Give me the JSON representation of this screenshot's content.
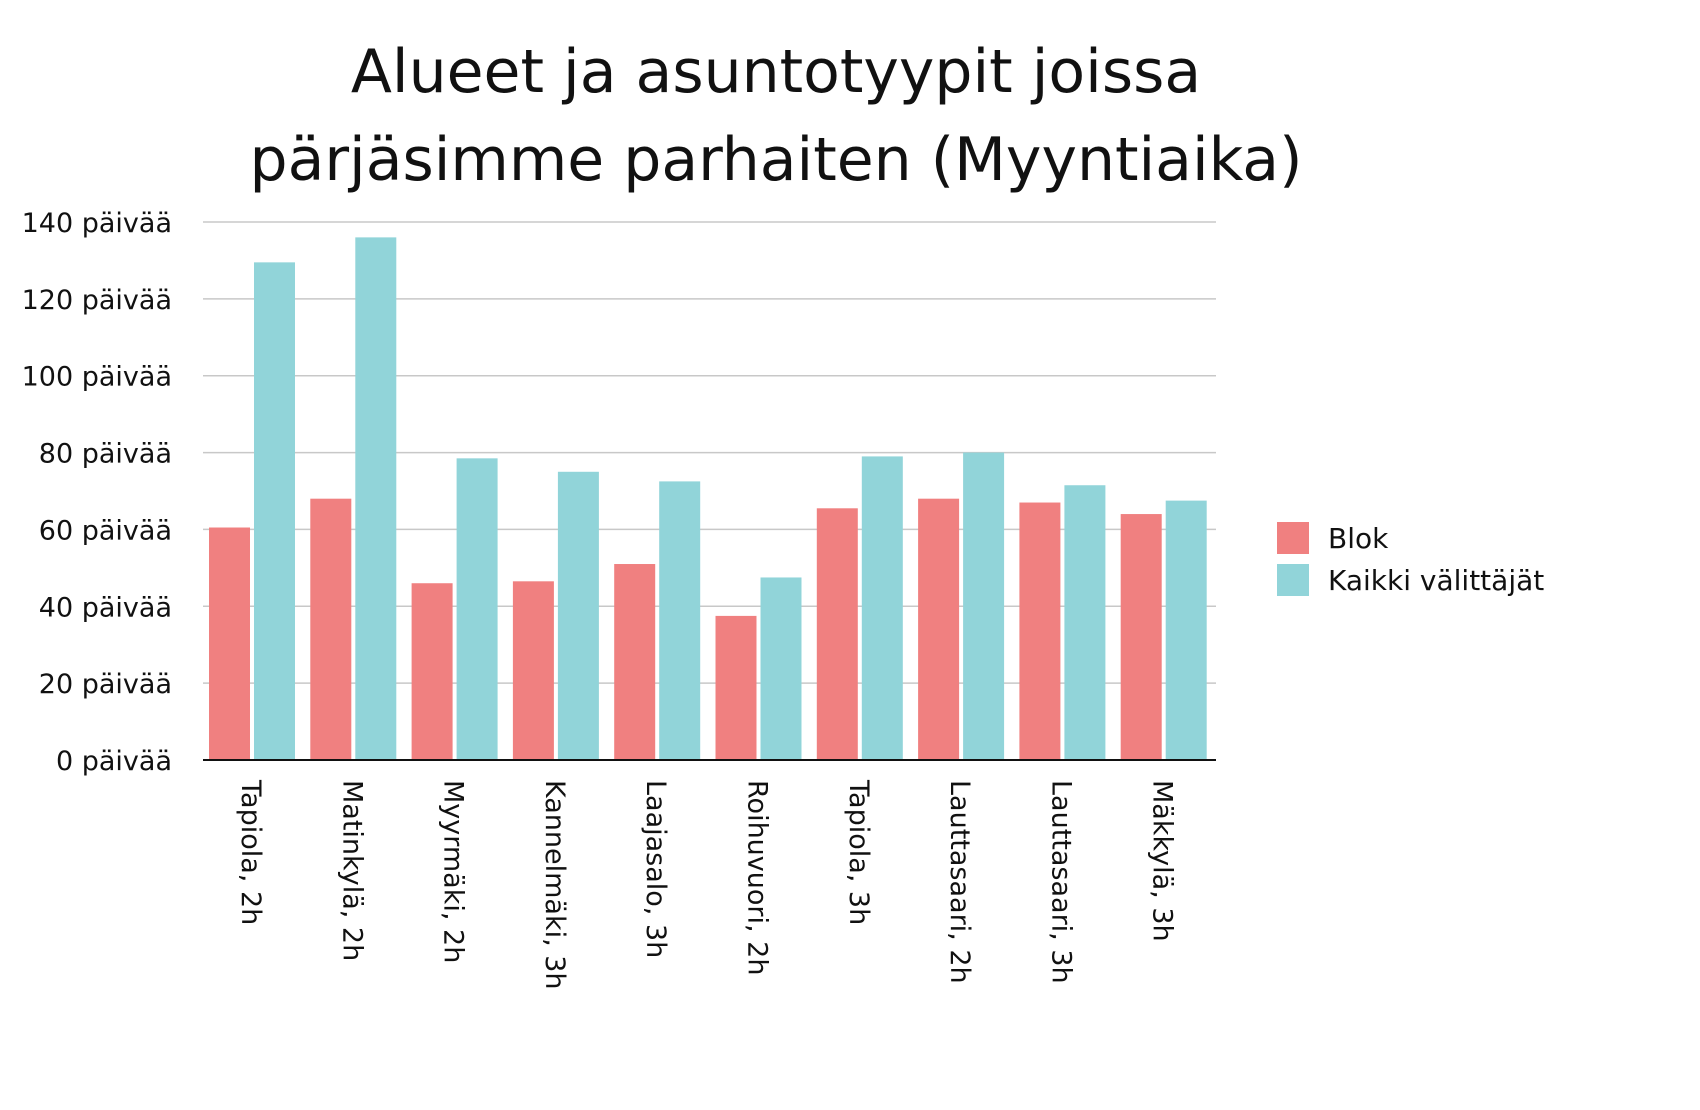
{
  "chart_data": {
    "type": "bar",
    "title": [
      "Alueet ja asuntotyypit joissa",
      "pärjäsimme parhaiten (Myyntiaika)"
    ],
    "categories": [
      "Tapiola, 2h",
      "Matinkylä, 2h",
      "Myyrmäki, 2h",
      "Kannelmäki, 3h",
      "Laajasalo, 3h",
      "Roihuvuori, 2h",
      "Tapiola, 3h",
      "Lauttasaari, 2h",
      "Lauttasaari, 3h",
      "Mäkkylä, 3h"
    ],
    "series": [
      {
        "name": "Blok",
        "color": "#f08080",
        "values": [
          60.5,
          68,
          46,
          46.5,
          51,
          37.5,
          65.5,
          68,
          67,
          64
        ]
      },
      {
        "name": "Kaikki välittäjät",
        "color": "#91d4d9",
        "values": [
          129.5,
          136,
          78.5,
          75,
          72.5,
          47.5,
          79,
          80,
          71.5,
          67.5
        ]
      }
    ],
    "ylim": [
      0,
      140
    ],
    "yticks": [
      0,
      20,
      40,
      60,
      80,
      100,
      120,
      140
    ],
    "ytick_labels": [
      "0 päivää",
      "20 päivää",
      "40 päivää",
      "60 päivää",
      "80 päivää",
      "100 päivää",
      "120 päivää",
      "140 päivää"
    ],
    "grid": true,
    "legend_position": "right"
  }
}
